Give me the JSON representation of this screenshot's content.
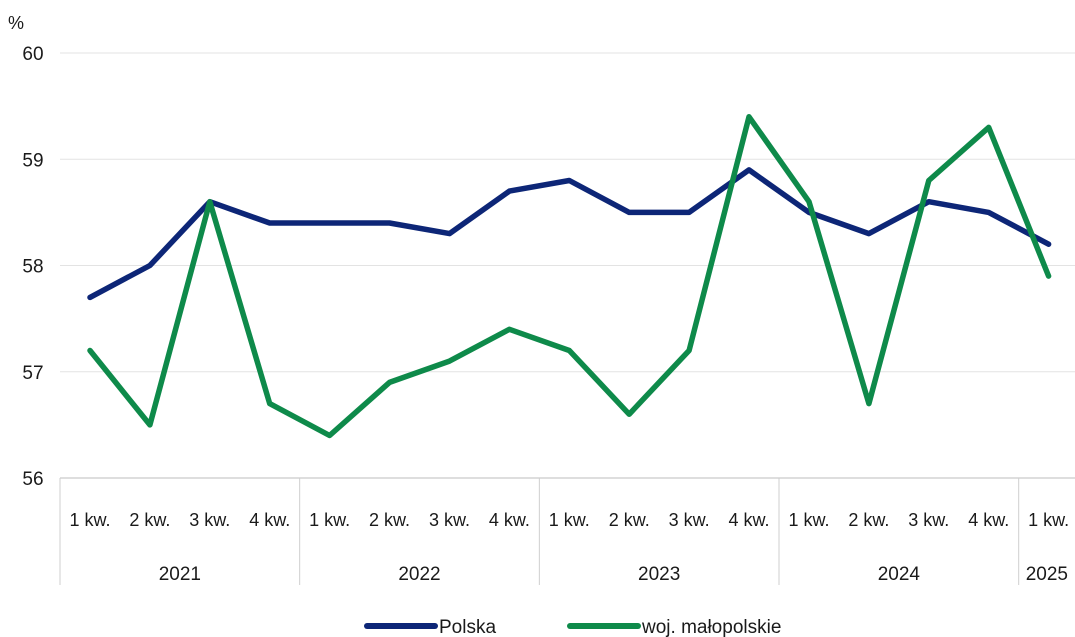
{
  "chart_data": {
    "type": "line",
    "ylabel": "%",
    "ylim": [
      56,
      60
    ],
    "yticks": [
      "56",
      "57",
      "58",
      "59",
      "60"
    ],
    "categories": [
      "1 kw.",
      "2 kw.",
      "3 kw.",
      "4 kw.",
      "1 kw.",
      "2 kw.",
      "3 kw.",
      "4 kw.",
      "1 kw.",
      "2 kw.",
      "3 kw.",
      "4 kw.",
      "1 kw.",
      "2 kw.",
      "3 kw.",
      "4 kw.",
      "1 kw."
    ],
    "years": [
      {
        "label": "2021",
        "count": 4
      },
      {
        "label": "2022",
        "count": 4
      },
      {
        "label": "2023",
        "count": 4
      },
      {
        "label": "2024",
        "count": 4
      },
      {
        "label": "2025",
        "count": 1
      }
    ],
    "series": [
      {
        "name": "Polska",
        "color": "#0d2677",
        "values": [
          57.7,
          58.0,
          58.6,
          58.4,
          58.4,
          58.4,
          58.3,
          58.7,
          58.8,
          58.5,
          58.5,
          58.9,
          58.5,
          58.3,
          58.6,
          58.5,
          58.2
        ]
      },
      {
        "name": "woj. małopolskie",
        "color": "#0e8a4a",
        "values": [
          57.2,
          56.5,
          58.6,
          56.7,
          56.4,
          56.9,
          57.1,
          57.4,
          57.2,
          56.6,
          57.2,
          59.4,
          58.6,
          56.7,
          58.8,
          59.3,
          57.9
        ]
      }
    ],
    "grid": true,
    "legend": "bottom"
  }
}
